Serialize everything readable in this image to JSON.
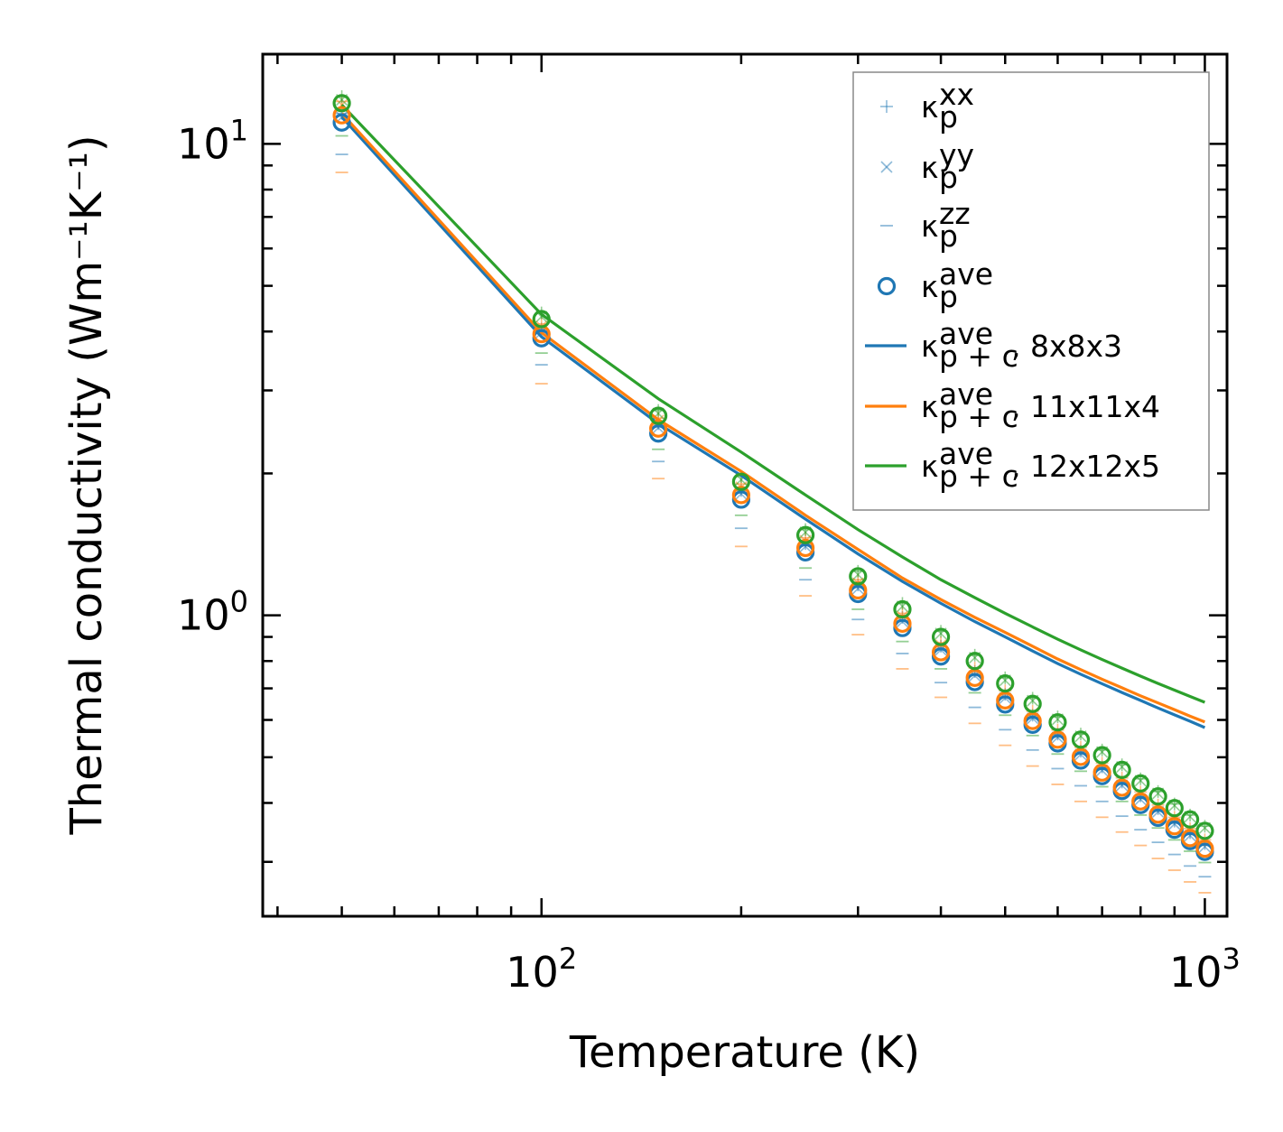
{
  "chart_data": {
    "type": "scatter",
    "xscale": "log",
    "yscale": "log",
    "xlabel": "Temperature (K)",
    "ylabel": "Thermal conductivity (Wm⁻¹K⁻¹)",
    "xlim": [
      38,
      1080
    ],
    "ylim": [
      0.23,
      15.5
    ],
    "x_ticks": [
      {
        "value": 100,
        "base": "10",
        "exp": "2"
      },
      {
        "value": 1000,
        "base": "10",
        "exp": "3"
      }
    ],
    "y_ticks": [
      {
        "value": 1,
        "base": "10",
        "exp": "0"
      },
      {
        "value": 10,
        "base": "10",
        "exp": "1"
      }
    ],
    "grid": false,
    "legend_position": "top-right",
    "x": [
      50,
      100,
      150,
      200,
      250,
      300,
      350,
      400,
      450,
      500,
      550,
      600,
      650,
      700,
      750,
      800,
      850,
      900,
      950,
      1000
    ],
    "legend": [
      {
        "symbol": "plus",
        "color": "#1f77b4",
        "main": "κ",
        "sup": "xx",
        "sub": "p",
        "tail": ""
      },
      {
        "symbol": "x",
        "color": "#1f77b4",
        "main": "κ",
        "sup": "yy",
        "sub": "p",
        "tail": ""
      },
      {
        "symbol": "dash",
        "color": "#1f77b4",
        "main": "κ",
        "sup": "zz",
        "sub": "p",
        "tail": ""
      },
      {
        "symbol": "circle",
        "color": "#1f77b4",
        "main": "κ",
        "sup": "ave",
        "sub": "p",
        "tail": ""
      },
      {
        "symbol": "line",
        "color": "#1f77b4",
        "main": "κ",
        "sup": "ave",
        "sub": "p + c",
        "tail": ", 8x8x3"
      },
      {
        "symbol": "line",
        "color": "#ff7f0e",
        "main": "κ",
        "sup": "ave",
        "sub": "p + c",
        "tail": ", 11x11x4"
      },
      {
        "symbol": "line",
        "color": "#2ca02c",
        "main": "κ",
        "sup": "ave",
        "sub": "p + c",
        "tail": ", 12x12x5"
      }
    ],
    "series": [
      {
        "name": "8x8x3",
        "color": "#1f77b4",
        "kappa_p_xx": [
          11.6,
          4.05,
          2.55,
          1.84,
          1.42,
          1.16,
          0.99,
          0.86,
          0.76,
          0.68,
          0.614,
          0.56,
          0.515,
          0.477,
          0.443,
          0.414,
          0.389,
          0.366,
          0.346,
          0.328
        ],
        "kappa_p_yy": [
          11.4,
          3.98,
          2.5,
          1.81,
          1.4,
          1.14,
          0.97,
          0.845,
          0.745,
          0.668,
          0.605,
          0.551,
          0.507,
          0.469,
          0.436,
          0.407,
          0.383,
          0.361,
          0.341,
          0.323
        ],
        "kappa_p_zz": [
          9.5,
          3.4,
          2.12,
          1.53,
          1.19,
          0.98,
          0.83,
          0.72,
          0.638,
          0.572,
          0.518,
          0.473,
          0.435,
          0.403,
          0.375,
          0.351,
          0.33,
          0.311,
          0.294,
          0.279
        ],
        "kappa_p_ave": [
          11.1,
          3.87,
          2.43,
          1.76,
          1.36,
          1.11,
          0.94,
          0.818,
          0.722,
          0.647,
          0.586,
          0.535,
          0.492,
          0.456,
          0.424,
          0.396,
          0.372,
          0.351,
          0.332,
          0.315
        ],
        "kappa_pc_ave": [
          11.4,
          3.9,
          2.55,
          1.98,
          1.6,
          1.35,
          1.18,
          1.06,
          0.97,
          0.9,
          0.84,
          0.79,
          0.75,
          0.716,
          0.686,
          0.66,
          0.636,
          0.615,
          0.596,
          0.578
        ]
      },
      {
        "name": "11x11x4",
        "color": "#ff7f0e",
        "kappa_p_xx": [
          12.3,
          4.15,
          2.62,
          1.9,
          1.46,
          1.19,
          1.01,
          0.875,
          0.773,
          0.692,
          0.626,
          0.571,
          0.525,
          0.486,
          0.452,
          0.422,
          0.396,
          0.373,
          0.353,
          0.334
        ],
        "kappa_p_yy": [
          12.1,
          4.1,
          2.59,
          1.87,
          1.44,
          1.17,
          0.995,
          0.865,
          0.765,
          0.685,
          0.62,
          0.565,
          0.52,
          0.481,
          0.447,
          0.418,
          0.392,
          0.37,
          0.349,
          0.331
        ],
        "kappa_p_zz": [
          8.7,
          3.1,
          1.95,
          1.4,
          1.1,
          0.91,
          0.77,
          0.67,
          0.59,
          0.53,
          0.479,
          0.438,
          0.403,
          0.373,
          0.347,
          0.325,
          0.305,
          0.288,
          0.272,
          0.258
        ],
        "kappa_p_ave": [
          11.5,
          3.95,
          2.49,
          1.8,
          1.39,
          1.13,
          0.96,
          0.835,
          0.737,
          0.66,
          0.597,
          0.545,
          0.501,
          0.464,
          0.431,
          0.403,
          0.378,
          0.357,
          0.337,
          0.32
        ],
        "kappa_pc_ave": [
          11.6,
          3.98,
          2.6,
          2.02,
          1.63,
          1.38,
          1.2,
          1.08,
          0.99,
          0.92,
          0.86,
          0.808,
          0.767,
          0.732,
          0.702,
          0.675,
          0.652,
          0.631,
          0.611,
          0.594
        ]
      },
      {
        "name": "12x12x5",
        "color": "#2ca02c",
        "kappa_p_xx": [
          12.6,
          4.38,
          2.72,
          1.97,
          1.52,
          1.24,
          1.06,
          0.925,
          0.823,
          0.737,
          0.667,
          0.609,
          0.56,
          0.518,
          0.482,
          0.45,
          0.423,
          0.398,
          0.377,
          0.357
        ],
        "kappa_p_yy": [
          12.4,
          4.3,
          2.68,
          1.94,
          1.5,
          1.22,
          1.045,
          0.915,
          0.813,
          0.728,
          0.659,
          0.602,
          0.554,
          0.513,
          0.477,
          0.446,
          0.419,
          0.395,
          0.374,
          0.354
        ],
        "kappa_p_zz": [
          10.4,
          3.6,
          2.25,
          1.63,
          1.26,
          1.03,
          0.88,
          0.77,
          0.685,
          0.614,
          0.556,
          0.508,
          0.467,
          0.433,
          0.403,
          0.377,
          0.354,
          0.334,
          0.316,
          0.299
        ],
        "kappa_p_ave": [
          12.2,
          4.25,
          2.65,
          1.92,
          1.48,
          1.21,
          1.03,
          0.9,
          0.8,
          0.717,
          0.649,
          0.593,
          0.545,
          0.505,
          0.47,
          0.44,
          0.413,
          0.39,
          0.369,
          0.349
        ],
        "kappa_pc_ave": [
          12.1,
          4.35,
          2.88,
          2.22,
          1.8,
          1.52,
          1.33,
          1.19,
          1.09,
          1.01,
          0.945,
          0.89,
          0.845,
          0.806,
          0.773,
          0.743,
          0.717,
          0.694,
          0.673,
          0.654
        ]
      }
    ]
  }
}
